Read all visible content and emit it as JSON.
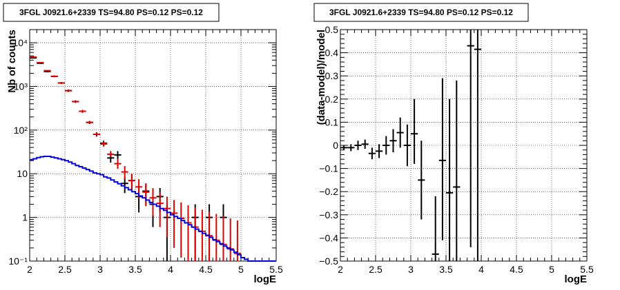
{
  "chart_data": [
    {
      "type": "scatter",
      "title": "3FGL J0921.6+2339 TS=94.80 PS=0.12 PS=0.12",
      "xlabel": "logE",
      "ylabel": "Nb of counts",
      "xlim": [
        2,
        5.5
      ],
      "ylim": [
        0.1,
        20000
      ],
      "yscale": "log",
      "grid": true,
      "x_ticks": [
        {
          "v": 2,
          "label": "2"
        },
        {
          "v": 2.5,
          "label": "2.5"
        },
        {
          "v": 3,
          "label": "3"
        },
        {
          "v": 3.5,
          "label": "3.5"
        },
        {
          "v": 4,
          "label": "4"
        },
        {
          "v": 4.5,
          "label": "4.5"
        },
        {
          "v": 5,
          "label": "5"
        },
        {
          "v": 5.5,
          "label": "5.5"
        }
      ],
      "y_ticks": [
        {
          "v": 0.1,
          "label": "10⁻¹"
        },
        {
          "v": 1,
          "label": "1"
        },
        {
          "v": 10,
          "label": "10"
        },
        {
          "v": 100,
          "label": "10²"
        },
        {
          "v": 1000,
          "label": "10³"
        },
        {
          "v": 10000,
          "label": "10⁴"
        }
      ],
      "series": [
        {
          "color": "#000000",
          "style": "errorbar",
          "points": [
            {
              "x": 2.05,
              "y": 4500,
              "lo": 4370,
              "hi": 4630
            },
            {
              "x": 2.15,
              "y": 3400,
              "lo": 3290,
              "hi": 3510
            },
            {
              "x": 2.25,
              "y": 2200,
              "lo": 2110,
              "hi": 2290
            },
            {
              "x": 2.35,
              "y": 1700,
              "lo": 1620,
              "hi": 1780
            },
            {
              "x": 2.45,
              "y": 1200,
              "lo": 1140,
              "hi": 1260
            },
            {
              "x": 2.55,
              "y": 800,
              "lo": 750,
              "hi": 850
            },
            {
              "x": 2.65,
              "y": 450,
              "lo": 420,
              "hi": 480
            },
            {
              "x": 2.75,
              "y": 270,
              "lo": 250,
              "hi": 290
            },
            {
              "x": 2.85,
              "y": 150,
              "lo": 138,
              "hi": 162
            },
            {
              "x": 2.95,
              "y": 80,
              "lo": 71,
              "hi": 89
            },
            {
              "x": 3.05,
              "y": 50,
              "lo": 43,
              "hi": 57
            },
            {
              "x": 3.15,
              "y": 23,
              "lo": 18,
              "hi": 28
            },
            {
              "x": 3.25,
              "y": 27,
              "lo": 21,
              "hi": 33
            },
            {
              "x": 3.35,
              "y": 6,
              "lo": 3.6,
              "hi": 8.4
            },
            {
              "x": 3.45,
              "y": 7,
              "lo": 4.4,
              "hi": 9.6
            },
            {
              "x": 3.55,
              "y": 3,
              "lo": 1.3,
              "hi": 4.7
            },
            {
              "x": 3.65,
              "y": 4,
              "lo": 2.0,
              "hi": 6.0
            },
            {
              "x": 3.75,
              "y": 2,
              "lo": 0.6,
              "hi": 3.4
            },
            {
              "x": 3.85,
              "y": 3,
              "lo": 1.3,
              "hi": 4.7
            },
            {
              "x": 3.95,
              "y": 1,
              "lo": 0.1,
              "hi": 2.0
            },
            {
              "x": 4.35,
              "y": 1,
              "lo": 0.1,
              "hi": 2.0
            },
            {
              "x": 4.55,
              "y": 1,
              "lo": 0.1,
              "hi": 2.0
            },
            {
              "x": 4.75,
              "y": 1,
              "lo": 0.1,
              "hi": 2.0
            }
          ]
        },
        {
          "color": "#e00000",
          "style": "errorbar",
          "points": [
            {
              "x": 2.05,
              "y": 4700,
              "lo": 4630,
              "hi": 4770
            },
            {
              "x": 2.15,
              "y": 3500,
              "lo": 3440,
              "hi": 3560
            },
            {
              "x": 2.25,
              "y": 2300,
              "lo": 2250,
              "hi": 2350
            },
            {
              "x": 2.35,
              "y": 1700,
              "lo": 1660,
              "hi": 1740
            },
            {
              "x": 2.45,
              "y": 1200,
              "lo": 1160,
              "hi": 1240
            },
            {
              "x": 2.55,
              "y": 800,
              "lo": 770,
              "hi": 830
            },
            {
              "x": 2.65,
              "y": 450,
              "lo": 430,
              "hi": 470
            },
            {
              "x": 2.75,
              "y": 270,
              "lo": 255,
              "hi": 285
            },
            {
              "x": 2.85,
              "y": 150,
              "lo": 140,
              "hi": 160
            },
            {
              "x": 2.95,
              "y": 80,
              "lo": 73,
              "hi": 87
            },
            {
              "x": 3.05,
              "y": 48,
              "lo": 42,
              "hi": 54
            },
            {
              "x": 3.15,
              "y": 28,
              "lo": 24,
              "hi": 33
            },
            {
              "x": 3.25,
              "y": 17,
              "lo": 13,
              "hi": 22
            },
            {
              "x": 3.35,
              "y": 11,
              "lo": 7.5,
              "hi": 15
            },
            {
              "x": 3.45,
              "y": 7,
              "lo": 4.5,
              "hi": 10
            },
            {
              "x": 3.55,
              "y": 5,
              "lo": 2.8,
              "hi": 7.5
            },
            {
              "x": 3.65,
              "y": 3.8,
              "lo": 1.8,
              "hi": 6
            },
            {
              "x": 3.75,
              "y": 2.8,
              "lo": 1.1,
              "hi": 4.7
            },
            {
              "x": 3.85,
              "y": 2.1,
              "lo": 0.6,
              "hi": 3.8
            },
            {
              "x": 3.95,
              "y": 1.6,
              "lo": 0.35,
              "hi": 3.0
            },
            {
              "x": 4.05,
              "y": 1.25,
              "lo": 0.2,
              "hi": 2.5
            },
            {
              "x": 4.15,
              "y": 0.95,
              "lo": 0.12,
              "hi": 2.2
            },
            {
              "x": 4.25,
              "y": 0.75,
              "lo": 0.1,
              "hi": 1.9
            },
            {
              "x": 4.35,
              "y": 0.6,
              "lo": 0.1,
              "hi": 1.7
            },
            {
              "x": 4.45,
              "y": 0.48,
              "lo": 0.1,
              "hi": 1.5
            },
            {
              "x": 4.55,
              "y": 0.38,
              "lo": 0.1,
              "hi": 1.35
            },
            {
              "x": 4.65,
              "y": 0.3,
              "lo": 0.1,
              "hi": 1.2
            },
            {
              "x": 4.75,
              "y": 0.24,
              "lo": 0.1,
              "hi": 1.05
            },
            {
              "x": 4.85,
              "y": 0.19,
              "lo": 0.1,
              "hi": 0.95
            },
            {
              "x": 4.95,
              "y": 0.15,
              "lo": 0.1,
              "hi": 0.85
            }
          ]
        },
        {
          "color": "#0000dd",
          "style": "step",
          "points": [
            {
              "x": 2.0,
              "y": 21
            },
            {
              "x": 2.05,
              "y": 22
            },
            {
              "x": 2.1,
              "y": 23.5
            },
            {
              "x": 2.15,
              "y": 24.5
            },
            {
              "x": 2.2,
              "y": 25
            },
            {
              "x": 2.25,
              "y": 25
            },
            {
              "x": 2.3,
              "y": 24
            },
            {
              "x": 2.35,
              "y": 23
            },
            {
              "x": 2.4,
              "y": 22
            },
            {
              "x": 2.45,
              "y": 21
            },
            {
              "x": 2.5,
              "y": 20
            },
            {
              "x": 2.55,
              "y": 18.5
            },
            {
              "x": 2.6,
              "y": 17
            },
            {
              "x": 2.65,
              "y": 15.5
            },
            {
              "x": 2.7,
              "y": 14.5
            },
            {
              "x": 2.75,
              "y": 13.5
            },
            {
              "x": 2.8,
              "y": 12.5
            },
            {
              "x": 2.85,
              "y": 11.5
            },
            {
              "x": 2.9,
              "y": 10.5
            },
            {
              "x": 2.95,
              "y": 10
            },
            {
              "x": 3.0,
              "y": 9.5
            },
            {
              "x": 3.05,
              "y": 8.5
            },
            {
              "x": 3.1,
              "y": 8
            },
            {
              "x": 3.15,
              "y": 7.2
            },
            {
              "x": 3.2,
              "y": 6.5
            },
            {
              "x": 3.25,
              "y": 5.9
            },
            {
              "x": 3.3,
              "y": 5.3
            },
            {
              "x": 3.35,
              "y": 4.8
            },
            {
              "x": 3.4,
              "y": 4.3
            },
            {
              "x": 3.45,
              "y": 3.9
            },
            {
              "x": 3.5,
              "y": 3.5
            },
            {
              "x": 3.55,
              "y": 3.1
            },
            {
              "x": 3.6,
              "y": 2.8
            },
            {
              "x": 3.65,
              "y": 2.5
            },
            {
              "x": 3.7,
              "y": 2.2
            },
            {
              "x": 3.75,
              "y": 2.0
            },
            {
              "x": 3.8,
              "y": 1.8
            },
            {
              "x": 3.85,
              "y": 1.6
            },
            {
              "x": 3.9,
              "y": 1.45
            },
            {
              "x": 3.95,
              "y": 1.3
            },
            {
              "x": 4.0,
              "y": 1.15
            },
            {
              "x": 4.05,
              "y": 1.05
            },
            {
              "x": 4.1,
              "y": 0.95
            },
            {
              "x": 4.15,
              "y": 0.85
            },
            {
              "x": 4.2,
              "y": 0.75
            },
            {
              "x": 4.25,
              "y": 0.68
            },
            {
              "x": 4.3,
              "y": 0.6
            },
            {
              "x": 4.35,
              "y": 0.54
            },
            {
              "x": 4.4,
              "y": 0.48
            },
            {
              "x": 4.45,
              "y": 0.43
            },
            {
              "x": 4.5,
              "y": 0.39
            },
            {
              "x": 4.55,
              "y": 0.35
            },
            {
              "x": 4.6,
              "y": 0.31
            },
            {
              "x": 4.65,
              "y": 0.28
            },
            {
              "x": 4.7,
              "y": 0.25
            },
            {
              "x": 4.75,
              "y": 0.22
            },
            {
              "x": 4.8,
              "y": 0.2
            },
            {
              "x": 4.85,
              "y": 0.18
            },
            {
              "x": 4.9,
              "y": 0.16
            },
            {
              "x": 4.95,
              "y": 0.14
            },
            {
              "x": 5.0,
              "y": 0.12
            },
            {
              "x": 5.05,
              "y": 0.11
            },
            {
              "x": 5.1,
              "y": 0.1
            },
            {
              "x": 5.5,
              "y": 0.1
            }
          ]
        }
      ]
    },
    {
      "type": "scatter",
      "title": "3FGL J0921.6+2339 TS=94.80 PS=0.12 PS=0.12",
      "xlabel": "logE",
      "ylabel": "(data-model)/model",
      "xlim": [
        2,
        5.5
      ],
      "ylim": [
        -0.5,
        0.5
      ],
      "yscale": "linear",
      "grid": true,
      "x_ticks": [
        {
          "v": 2,
          "label": "2"
        },
        {
          "v": 2.5,
          "label": "2.5"
        },
        {
          "v": 3,
          "label": "3"
        },
        {
          "v": 3.5,
          "label": "3.5"
        },
        {
          "v": 4,
          "label": "4"
        },
        {
          "v": 4.5,
          "label": "4.5"
        },
        {
          "v": 5,
          "label": "5"
        },
        {
          "v": 5.5,
          "label": "5.5"
        }
      ],
      "y_ticks": [
        {
          "v": -0.5,
          "label": "−0.5"
        },
        {
          "v": -0.4,
          "label": "−0.4"
        },
        {
          "v": -0.3,
          "label": "−0.3"
        },
        {
          "v": -0.2,
          "label": "−0.2"
        },
        {
          "v": -0.1,
          "label": "−0.1"
        },
        {
          "v": 0,
          "label": "0"
        },
        {
          "v": 0.1,
          "label": "0.1"
        },
        {
          "v": 0.2,
          "label": "0.2"
        },
        {
          "v": 0.3,
          "label": "0.3"
        },
        {
          "v": 0.4,
          "label": "0.4"
        },
        {
          "v": 0.5,
          "label": "0.5"
        }
      ],
      "series": [
        {
          "color": "#000000",
          "style": "errorbar",
          "points": [
            {
              "x": 2.05,
              "y": -0.01,
              "lo": -0.02,
              "hi": 0.0
            },
            {
              "x": 2.15,
              "y": -0.01,
              "lo": -0.025,
              "hi": 0.005
            },
            {
              "x": 2.25,
              "y": 0.0,
              "lo": -0.02,
              "hi": 0.02
            },
            {
              "x": 2.35,
              "y": 0.005,
              "lo": -0.015,
              "hi": 0.025
            },
            {
              "x": 2.45,
              "y": -0.035,
              "lo": -0.06,
              "hi": -0.01
            },
            {
              "x": 2.55,
              "y": -0.025,
              "lo": -0.055,
              "hi": 0.005
            },
            {
              "x": 2.65,
              "y": 0.0,
              "lo": -0.04,
              "hi": 0.04
            },
            {
              "x": 2.75,
              "y": 0.02,
              "lo": -0.03,
              "hi": 0.07
            },
            {
              "x": 2.85,
              "y": 0.055,
              "lo": -0.01,
              "hi": 0.12
            },
            {
              "x": 2.95,
              "y": 0.0,
              "lo": -0.09,
              "hi": 0.09
            },
            {
              "x": 3.05,
              "y": 0.05,
              "lo": -0.08,
              "hi": 0.2
            },
            {
              "x": 3.15,
              "y": -0.15,
              "lo": -0.32,
              "hi": 0.02
            },
            {
              "x": 3.35,
              "y": -0.47,
              "lo": -0.5,
              "hi": -0.22
            },
            {
              "x": 3.45,
              "y": -0.065,
              "lo": -0.41,
              "hi": 0.29
            },
            {
              "x": 3.55,
              "y": -0.205,
              "lo": -0.5,
              "hi": 0.2
            },
            {
              "x": 3.65,
              "y": -0.18,
              "lo": -0.5,
              "hi": 0.28
            },
            {
              "x": 3.85,
              "y": 0.43,
              "lo": -0.44,
              "hi": 0.5
            },
            {
              "x": 3.95,
              "y": 0.415,
              "lo": -0.5,
              "hi": 0.5
            }
          ]
        }
      ]
    }
  ]
}
